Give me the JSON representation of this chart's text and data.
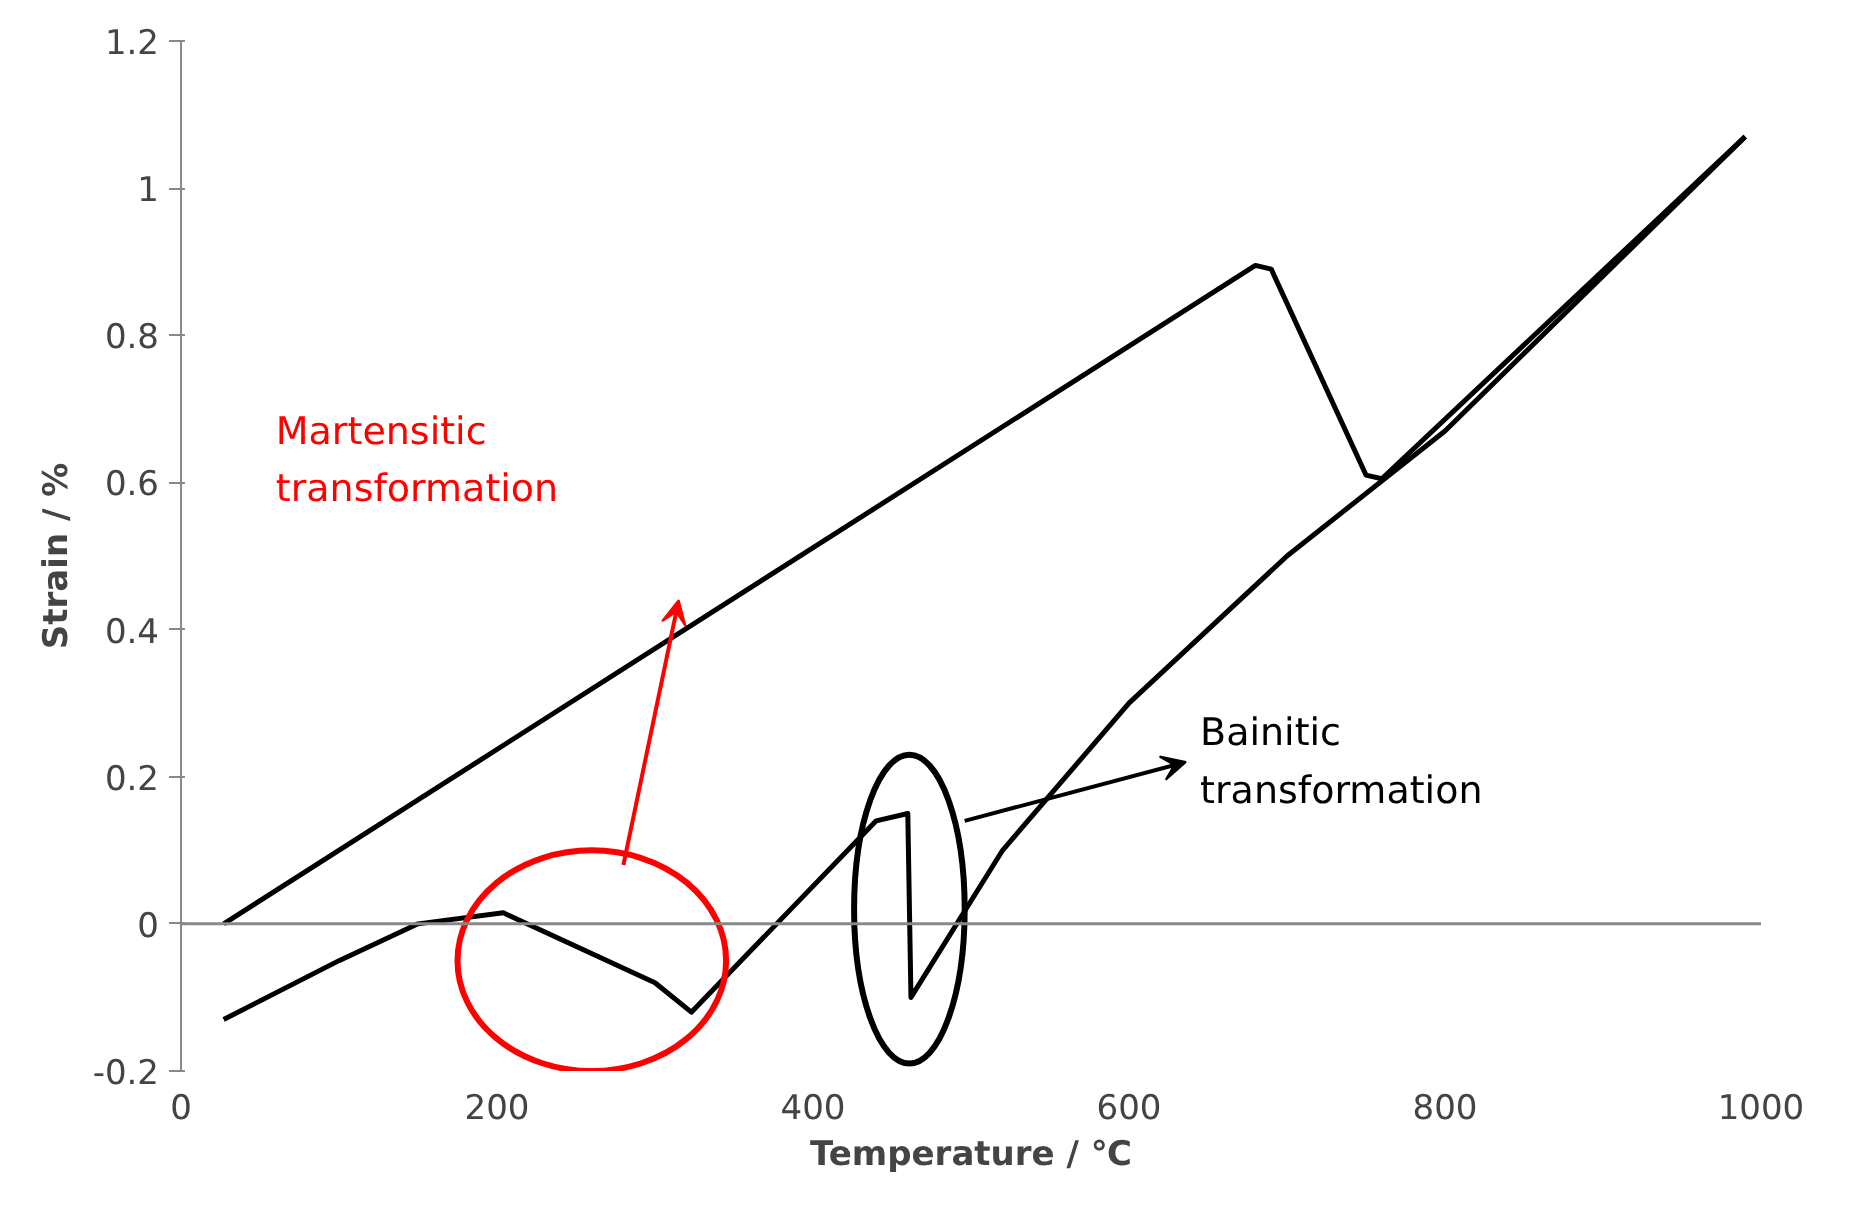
{
  "chart_data": {
    "type": "line",
    "xlabel": "Temperature / ℃",
    "ylabel": "Strain / %",
    "xlim": [
      0,
      1000
    ],
    "xticks": [
      0,
      200,
      400,
      600,
      800,
      1000
    ],
    "ylim": [
      -0.2,
      1.2
    ],
    "yticks": [
      {
        "value": -0.2,
        "label": "-0.2"
      },
      0,
      0.2,
      0.4,
      0.6,
      0.8,
      1,
      1.2
    ],
    "grid": false,
    "marker": "none",
    "line_style": "solid",
    "ref_lines": [
      {
        "axis": "y",
        "value": 0,
        "color": "#888888"
      }
    ],
    "series": [
      {
        "color": "#000000",
        "x": [
          27,
          680,
          690,
          750,
          760,
          990
        ],
        "values": [
          0,
          0.895,
          0.89,
          0.61,
          0.605,
          1.07
        ]
      },
      {
        "color": "#000000",
        "x": [
          990,
          800,
          700,
          600,
          520,
          462,
          460,
          440,
          323,
          300,
          204,
          150,
          100,
          27
        ],
        "values": [
          1.07,
          0.67,
          0.5,
          0.3,
          0.1,
          -0.1,
          0.15,
          0.14,
          -0.12,
          -0.08,
          0.015,
          0.0,
          -0.05,
          -0.13
        ]
      }
    ],
    "annotations": [
      "Martensitic\ntransformation",
      "Bainitic\ntransformation"
    ]
  }
}
